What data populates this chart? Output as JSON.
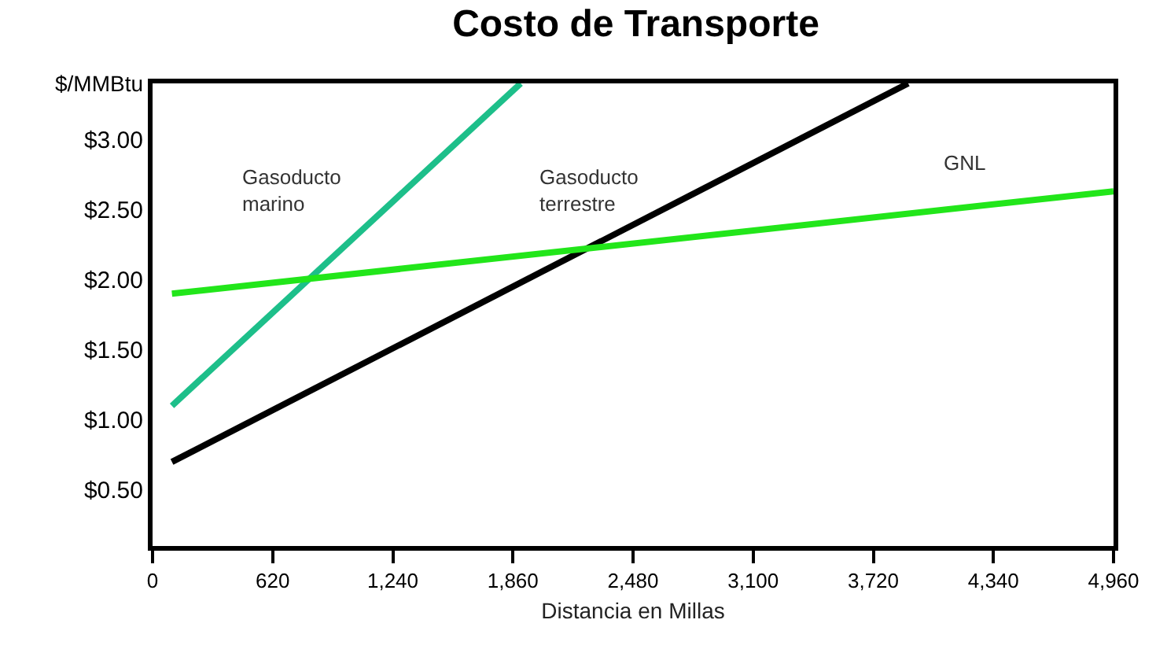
{
  "chart_data": {
    "type": "line",
    "title": "Costo de Transporte",
    "xlabel": "Distancia en Millas",
    "ylabel": "$/MMBtu",
    "series": [
      {
        "name": "Gasoducto marino",
        "color": "#1dbf8a",
        "x": [
          100,
          1900
        ],
        "values": [
          1.1,
          3.4
        ]
      },
      {
        "name": "Gasoducto terrestre",
        "color": "#000000",
        "x": [
          100,
          3900
        ],
        "values": [
          0.7,
          3.4
        ]
      },
      {
        "name": "GNL",
        "color": "#22e61a",
        "x": [
          100,
          4960
        ],
        "values": [
          1.9,
          2.63
        ]
      }
    ],
    "xlim": [
      0,
      4960
    ],
    "xticks": [
      0,
      {
        "value": 620,
        "label": "620"
      },
      {
        "value": 1240,
        "label": "1,240"
      },
      {
        "value": 1860,
        "label": "1,860"
      },
      {
        "value": 2480,
        "label": "2,480"
      },
      {
        "value": 3100,
        "label": "3,100"
      },
      {
        "value": 3720,
        "label": "3,720"
      },
      {
        "value": 4340,
        "label": "4,340"
      },
      {
        "value": 4960,
        "label": "4,960"
      }
    ],
    "ylim": [
      0.1,
      3.4
    ],
    "yticks": [
      {
        "value": 0.5,
        "label": "$0.50"
      },
      {
        "value": 1.0,
        "label": "$1.00"
      },
      {
        "value": 1.5,
        "label": "$1.50"
      },
      {
        "value": 2.0,
        "label": "$2.00"
      },
      {
        "value": 2.5,
        "label": "$2.50"
      },
      {
        "value": 3.0,
        "label": "$3.00"
      }
    ],
    "legend": false,
    "marker": "none",
    "line_style": "solid"
  }
}
